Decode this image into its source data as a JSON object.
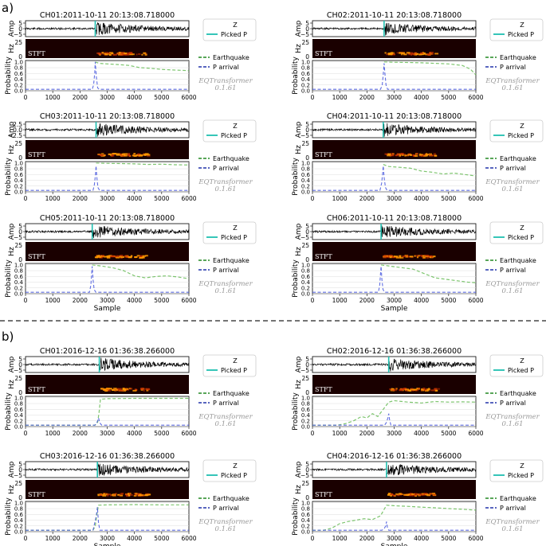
{
  "section_labels": [
    "a)",
    "b)"
  ],
  "common": {
    "amp_label": "Amp",
    "hz_label": "Hz",
    "prob_label": "Probability",
    "xlabel": "Sample",
    "stft_label": "STFT",
    "legend_wave": [
      "Z",
      "Picked P"
    ],
    "legend_prob": [
      "Earthquake",
      "P arrival"
    ],
    "watermark_name": "EQTransformer",
    "watermark_version": "0.1.61",
    "hz_ticks": [
      "25",
      "0"
    ],
    "prob_ticks": [
      "0.0",
      "0.2",
      "0.4",
      "0.6",
      "0.8",
      "1.0"
    ],
    "x_ticks": [
      "0",
      "1000",
      "2000",
      "3000",
      "4000",
      "5000",
      "6000"
    ],
    "colors": {
      "waveform": "#000000",
      "picked_p": "#1fbfb0",
      "earthquake": "#66bb55",
      "p_arrival": "#4455dd",
      "p_arrival_peak": "#5577cc",
      "spectrogram_bg": "#1a0000",
      "spectrogram_hot": "#ff9900"
    }
  },
  "chart_data": [
    {
      "type": "line",
      "title": "CH01:2011-10-11 20:13:08.718000",
      "xlim": [
        0,
        6000
      ],
      "ylim": [
        0,
        1.05
      ],
      "amp_ticks": [
        "5",
        "0",
        "−5"
      ],
      "pick": 2560,
      "series": [
        {
          "name": "Earthquake",
          "x": [
            2560,
            2700,
            3000,
            3400,
            3800,
            4200,
            4600,
            5000,
            5400,
            6000
          ],
          "values": [
            1.0,
            0.95,
            0.93,
            0.91,
            0.88,
            0.8,
            0.78,
            0.74,
            0.72,
            0.7
          ]
        },
        {
          "name": "P arrival",
          "x": [
            0,
            2450,
            2500,
            2540,
            2560,
            2600,
            2650,
            2700,
            6000
          ],
          "values": [
            0.05,
            0.05,
            0.2,
            0.6,
            1.0,
            0.5,
            0.1,
            0.05,
            0.05
          ]
        }
      ]
    },
    {
      "type": "line",
      "title": "CH02:2011-10-11 20:13:08.718000",
      "xlim": [
        0,
        6000
      ],
      "ylim": [
        0,
        1.05
      ],
      "amp_ticks": [
        "5",
        "0",
        "−5"
      ],
      "pick": 2630,
      "series": [
        {
          "name": "Earthquake",
          "x": [
            2630,
            3000,
            3500,
            4000,
            4500,
            5000,
            5500,
            5800,
            6000
          ],
          "values": [
            1.0,
            0.99,
            0.98,
            0.97,
            0.95,
            0.93,
            0.88,
            0.75,
            0.55
          ]
        },
        {
          "name": "P arrival",
          "x": [
            0,
            2500,
            2560,
            2600,
            2630,
            2660,
            2700,
            2760,
            6000
          ],
          "values": [
            0.05,
            0.05,
            0.2,
            0.55,
            0.95,
            0.6,
            0.2,
            0.05,
            0.05
          ]
        }
      ]
    },
    {
      "type": "line",
      "title": "CH03:2011-10-11 20:13:08.718000",
      "xlim": [
        0,
        6000
      ],
      "ylim": [
        0,
        1.05
      ],
      "amp_ticks": [
        "2.5",
        "0.0",
        "−2.5"
      ],
      "pick": 2590,
      "series": [
        {
          "name": "Earthquake",
          "x": [
            2590,
            3000,
            3500,
            4000,
            4500,
            5000,
            5500,
            6000
          ],
          "values": [
            1.0,
            0.99,
            0.98,
            0.97,
            0.95,
            0.96,
            0.94,
            0.93
          ]
        },
        {
          "name": "P arrival",
          "x": [
            0,
            2480,
            2530,
            2570,
            2590,
            2620,
            2660,
            2720,
            6000
          ],
          "values": [
            0.05,
            0.05,
            0.25,
            0.6,
            0.9,
            0.5,
            0.15,
            0.05,
            0.05
          ]
        }
      ]
    },
    {
      "type": "line",
      "title": "CH04:2011-10-11 20:13:08.718000",
      "xlim": [
        0,
        6000
      ],
      "ylim": [
        0,
        1.05
      ],
      "amp_ticks": [
        "5",
        "0",
        "−5"
      ],
      "pick": 2600,
      "series": [
        {
          "name": "Earthquake",
          "x": [
            2600,
            2800,
            3200,
            3600,
            4000,
            4400,
            4800,
            5200,
            5600,
            6000
          ],
          "values": [
            0.95,
            0.88,
            0.85,
            0.82,
            0.72,
            0.68,
            0.62,
            0.65,
            0.6,
            0.55
          ]
        },
        {
          "name": "P arrival",
          "x": [
            0,
            2480,
            2540,
            2580,
            2600,
            2630,
            2680,
            2740,
            6000
          ],
          "values": [
            0.05,
            0.05,
            0.3,
            0.65,
            0.9,
            0.5,
            0.15,
            0.05,
            0.05
          ]
        }
      ]
    },
    {
      "type": "line",
      "title": "CH05:2011-10-11 20:13:08.718000",
      "xlim": [
        0,
        6000
      ],
      "ylim": [
        0,
        1.05
      ],
      "amp_ticks": [
        "5",
        "0",
        "−5"
      ],
      "pick": 2450,
      "series": [
        {
          "name": "Earthquake",
          "x": [
            2450,
            2800,
            3200,
            3600,
            4000,
            4400,
            4800,
            5200,
            5600,
            6000
          ],
          "values": [
            1.0,
            0.96,
            0.9,
            0.8,
            0.62,
            0.55,
            0.6,
            0.62,
            0.58,
            0.52
          ]
        },
        {
          "name": "P arrival",
          "x": [
            0,
            2350,
            2400,
            2430,
            2450,
            2480,
            2520,
            2580,
            6000
          ],
          "values": [
            0.05,
            0.05,
            0.3,
            0.7,
            0.95,
            0.5,
            0.15,
            0.05,
            0.05
          ]
        }
      ]
    },
    {
      "type": "line",
      "title": "CH06:2011-10-11 20:13:08.718000",
      "xlim": [
        0,
        6000
      ],
      "ylim": [
        0,
        1.05
      ],
      "amp_ticks": [
        "5",
        "0",
        "−5"
      ],
      "pick": 2520,
      "series": [
        {
          "name": "Earthquake",
          "x": [
            2520,
            2900,
            3300,
            3700,
            4100,
            4500,
            4900,
            5300,
            5700,
            6000
          ],
          "values": [
            1.0,
            0.95,
            0.9,
            0.85,
            0.7,
            0.55,
            0.5,
            0.45,
            0.4,
            0.38
          ]
        },
        {
          "name": "P arrival",
          "x": [
            0,
            2420,
            2470,
            2500,
            2520,
            2550,
            2590,
            2650,
            6000
          ],
          "values": [
            0.05,
            0.05,
            0.3,
            0.7,
            0.95,
            0.5,
            0.15,
            0.05,
            0.05
          ]
        }
      ]
    },
    {
      "type": "line",
      "title": "CH01:2016-12-16 01:36:38.266000",
      "xlim": [
        0,
        6000
      ],
      "ylim": [
        0,
        1.05
      ],
      "amp_ticks": [
        "5",
        "0",
        "−5"
      ],
      "pick": 2710,
      "series": [
        {
          "name": "Earthquake",
          "x": [
            0,
            2550,
            2650,
            2700,
            2750,
            3000,
            4000,
            5000,
            6000
          ],
          "values": [
            0.05,
            0.05,
            0.15,
            0.5,
            0.95,
            0.97,
            0.98,
            0.98,
            0.98
          ]
        },
        {
          "name": "P arrival",
          "x": [
            0,
            2550,
            2600,
            2650,
            2680,
            2710,
            2750,
            2800,
            6000
          ],
          "values": [
            0.05,
            0.05,
            0.1,
            0.2,
            0.3,
            0.2,
            0.1,
            0.05,
            0.05
          ]
        }
      ]
    },
    {
      "type": "line",
      "title": "CH02:2016-12-16 01:36:38.266000",
      "xlim": [
        0,
        6000
      ],
      "ylim": [
        0,
        1.05
      ],
      "amp_ticks": [
        "5",
        "0",
        "−5"
      ],
      "pick": 2800,
      "series": [
        {
          "name": "Earthquake",
          "x": [
            0,
            900,
            1200,
            1500,
            1800,
            2000,
            2200,
            2400,
            2600,
            2800,
            3000,
            3500,
            4000,
            4500,
            5000,
            5500,
            6000
          ],
          "values": [
            0.05,
            0.05,
            0.1,
            0.2,
            0.35,
            0.3,
            0.45,
            0.35,
            0.6,
            0.85,
            0.9,
            0.85,
            0.82,
            0.87,
            0.85,
            0.86,
            0.85
          ]
        },
        {
          "name": "P arrival",
          "x": [
            0,
            2650,
            2720,
            2770,
            2800,
            2830,
            2880,
            6000
          ],
          "values": [
            0.05,
            0.05,
            0.15,
            0.3,
            0.45,
            0.25,
            0.05,
            0.05
          ]
        }
      ]
    },
    {
      "type": "line",
      "title": "CH03:2016-12-16 01:36:38.266000",
      "xlim": [
        0,
        6000
      ],
      "ylim": [
        0,
        1.05
      ],
      "amp_ticks": [
        "5",
        "0",
        "−5"
      ],
      "pick": 2640,
      "series": [
        {
          "name": "Earthquake",
          "x": [
            0,
            2480,
            2560,
            2620,
            2680,
            3000,
            4000,
            5000,
            6000
          ],
          "values": [
            0.05,
            0.05,
            0.2,
            0.6,
            0.92,
            0.93,
            0.94,
            0.93,
            0.93
          ]
        },
        {
          "name": "P arrival",
          "x": [
            0,
            2480,
            2540,
            2600,
            2640,
            2680,
            2730,
            6000
          ],
          "values": [
            0.05,
            0.05,
            0.3,
            0.55,
            0.85,
            0.3,
            0.05,
            0.05
          ]
        }
      ]
    },
    {
      "type": "line",
      "title": "CH04:2016-12-16 01:36:38.266000",
      "xlim": [
        0,
        6000
      ],
      "ylim": [
        0,
        1.05
      ],
      "amp_ticks": [
        "5",
        "0",
        "−5"
      ],
      "pick": 2720,
      "series": [
        {
          "name": "Earthquake",
          "x": [
            0,
            400,
            700,
            1000,
            1300,
            1600,
            1900,
            2200,
            2500,
            2720,
            3000,
            3500,
            4000,
            4500,
            5000,
            5500,
            6000
          ],
          "values": [
            0.05,
            0.05,
            0.12,
            0.28,
            0.35,
            0.4,
            0.45,
            0.42,
            0.55,
            0.92,
            0.9,
            0.88,
            0.85,
            0.83,
            0.8,
            0.78,
            0.75
          ]
        },
        {
          "name": "P arrival",
          "x": [
            0,
            2550,
            2630,
            2690,
            2720,
            2750,
            2800,
            6000
          ],
          "values": [
            0.05,
            0.05,
            0.1,
            0.2,
            0.35,
            0.15,
            0.05,
            0.05
          ]
        }
      ]
    }
  ]
}
